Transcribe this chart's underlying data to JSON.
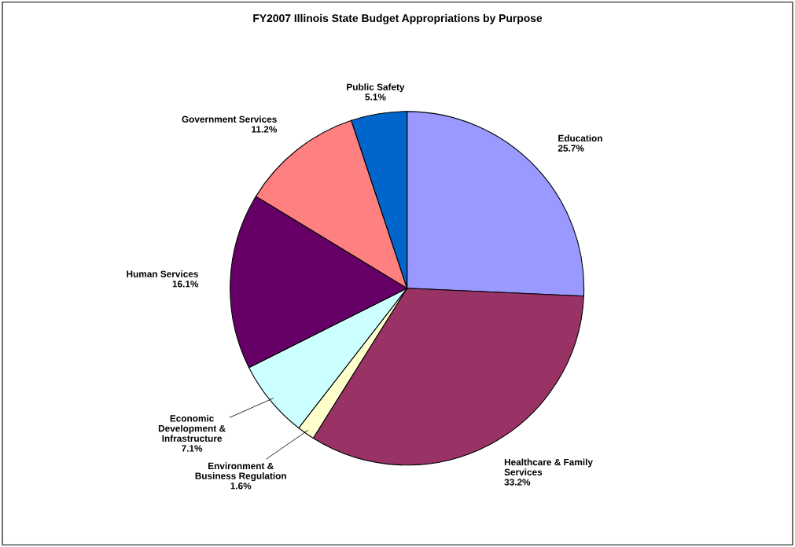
{
  "chart_data": {
    "type": "pie",
    "title": "FY2007 Illinois State Budget Appropriations by Purpose",
    "categories": [
      "Education",
      "Healthcare & Family\nServices",
      "Environment &\nBusiness Regulation",
      "Economic\nDevelopment &\nInfrastructure",
      "Human Services",
      "Government Services",
      "Public Safety"
    ],
    "values": [
      25.7,
      33.2,
      1.6,
      7.1,
      16.1,
      11.2,
      5.1
    ],
    "colors": [
      "#9999ff",
      "#993366",
      "#ffffcc",
      "#ccffff",
      "#660066",
      "#ff8080",
      "#0066cc"
    ],
    "value_labels": [
      "25.7%",
      "33.2%",
      "1.6%",
      "7.1%",
      "16.1%",
      "11.2%",
      "5.1%"
    ],
    "legend": false
  }
}
